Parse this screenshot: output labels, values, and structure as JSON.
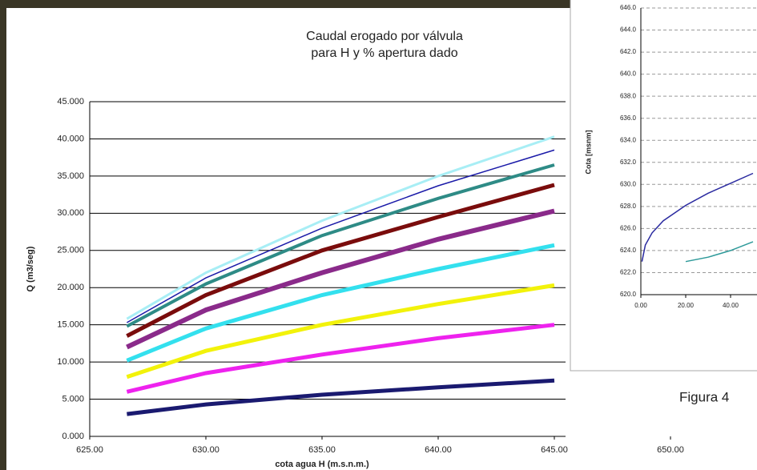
{
  "chart_data": [
    {
      "type": "line",
      "title_lines": [
        "Caudal erogado por válvula",
        "para H y % apertura dado"
      ],
      "x_label": "cota agua H (m.s.n.m.)",
      "y_label": "Q (m3/seg)",
      "x": [
        626.6,
        630,
        635,
        640,
        645
      ],
      "series": [
        {
          "color": "#a8eef5",
          "values": [
            15.8,
            22,
            29,
            35,
            40.3
          ]
        },
        {
          "color": "#1a1aa8",
          "values": [
            15.3,
            21.3,
            28,
            33.7,
            38.5
          ]
        },
        {
          "color": "#2e8b86",
          "values": [
            14.8,
            20.5,
            27,
            32,
            36.5
          ]
        },
        {
          "color": "#7a0c0c",
          "values": [
            13.5,
            19,
            25,
            29.5,
            33.8
          ]
        },
        {
          "color": "#8a2a8a",
          "values": [
            12,
            17,
            22,
            26.5,
            30.3
          ]
        },
        {
          "color": "#33e0ee",
          "values": [
            10.2,
            14.5,
            19,
            22.5,
            25.7
          ]
        },
        {
          "color": "#f2f20a",
          "values": [
            8,
            11.5,
            15,
            17.8,
            20.3
          ]
        },
        {
          "color": "#ee22ee",
          "values": [
            6,
            8.5,
            11,
            13.2,
            15
          ]
        },
        {
          "color": "#1a1a70",
          "values": [
            3,
            4.3,
            5.6,
            6.6,
            7.5
          ]
        }
      ],
      "xlim": [
        625,
        650
      ],
      "xticks": [
        {
          "value": 625,
          "label": "625.00"
        },
        {
          "value": 630,
          "label": "630.00"
        },
        {
          "value": 635,
          "label": "635.00"
        },
        {
          "value": 640,
          "label": "640.00"
        },
        {
          "value": 645,
          "label": "645.00"
        },
        {
          "value": 650,
          "label": "650.00"
        }
      ],
      "ylim": [
        0,
        45
      ],
      "yticks": [
        {
          "value": 0,
          "label": "0.000"
        },
        {
          "value": 5,
          "label": "5.000"
        },
        {
          "value": 10,
          "label": "10.000"
        },
        {
          "value": 15,
          "label": "15.000"
        },
        {
          "value": 20,
          "label": "20.000"
        },
        {
          "value": 25,
          "label": "25.000"
        },
        {
          "value": 30,
          "label": "30.000"
        },
        {
          "value": 35,
          "label": "35.000"
        },
        {
          "value": 40,
          "label": "40.000"
        },
        {
          "value": 45,
          "label": "45.000"
        }
      ],
      "grid": true
    },
    {
      "type": "line",
      "y_label": "Cota [msnm]",
      "caption": "Figura 4",
      "series": [
        {
          "color": "#2a2aa0",
          "x": [
            0.5,
            2,
            5,
            10,
            20,
            30,
            40,
            50
          ],
          "values": [
            623,
            624.5,
            625.6,
            626.7,
            628.1,
            629.2,
            630.1,
            631
          ]
        },
        {
          "color": "#2e9a9a",
          "x": [
            20,
            30,
            40,
            50
          ],
          "values": [
            623,
            623.4,
            624,
            624.8
          ]
        }
      ],
      "xlim": [
        0,
        50
      ],
      "xticks": [
        {
          "value": 0,
          "label": "0.00"
        },
        {
          "value": 20,
          "label": "20.00"
        },
        {
          "value": 40,
          "label": "40.00"
        }
      ],
      "ylim": [
        620,
        646
      ],
      "yticks": [
        {
          "value": 620,
          "label": "620.0"
        },
        {
          "value": 622,
          "label": "622.0"
        },
        {
          "value": 624,
          "label": "624.0"
        },
        {
          "value": 626,
          "label": "626.0"
        },
        {
          "value": 628,
          "label": "628.0"
        },
        {
          "value": 630,
          "label": "630.0"
        },
        {
          "value": 632,
          "label": "632.0"
        },
        {
          "value": 634,
          "label": "634.0"
        },
        {
          "value": 636,
          "label": "636.0"
        },
        {
          "value": 638,
          "label": "638.0"
        },
        {
          "value": 640,
          "label": "640.0"
        },
        {
          "value": 642,
          "label": "642.0"
        },
        {
          "value": 644,
          "label": "644.0"
        },
        {
          "value": 646,
          "label": "646.0"
        }
      ],
      "grid": true
    }
  ]
}
